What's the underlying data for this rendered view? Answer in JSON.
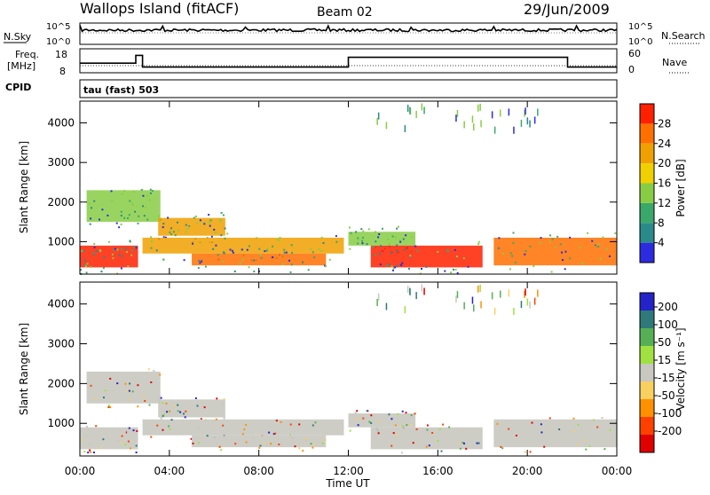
{
  "header": {
    "station": "Wallops Island (fitACF)",
    "beam": "Beam 02",
    "date": "29/Jun/2009"
  },
  "noise_panel": {
    "left_label": "N.Sky",
    "right_label": "N.Search",
    "left_ticks": [
      "10^5",
      "10^0"
    ],
    "right_ticks": [
      "10^5",
      "10^0"
    ]
  },
  "freq_panel": {
    "left_label_1": "Freq.",
    "left_label_2": "[MHz]",
    "left_ticks": [
      "18",
      "8"
    ],
    "right_label": "Nave",
    "right_ticks": [
      "60",
      "0"
    ]
  },
  "cpid": {
    "label": "CPID",
    "value": "tau (fast) 503"
  },
  "power_panel": {
    "ylabel": "Slant Range [km]",
    "yticks": [
      "4000",
      "3000",
      "2000",
      "1000"
    ],
    "colorbar_label": "Power [dB]",
    "colorbar_ticks": [
      "28",
      "24",
      "20",
      "16",
      "12",
      "8",
      "4"
    ],
    "colors": [
      "#2b2be0",
      "#2a8a8a",
      "#3aa86a",
      "#88cc44",
      "#f0d000",
      "#f0a000",
      "#ff7000",
      "#ff2000"
    ]
  },
  "velocity_panel": {
    "ylabel": "Slant Range [km]",
    "yticks": [
      "4000",
      "3000",
      "2000",
      "1000"
    ],
    "colorbar_label": "Velocity [m s⁻¹]",
    "colorbar_ticks": [
      "200",
      "100",
      "50",
      "15",
      "-15",
      "-50",
      "-100",
      "-200"
    ],
    "colors": [
      "#2323c8",
      "#2e7a7a",
      "#55b055",
      "#a0e040",
      "#c8c8c0",
      "#f8d060",
      "#ff9000",
      "#ff4000",
      "#e00000"
    ]
  },
  "xaxis": {
    "label": "Time UT",
    "ticks": [
      "00:00",
      "04:00",
      "08:00",
      "12:00",
      "16:00",
      "20:00",
      "00:00"
    ]
  },
  "chart_data": {
    "type": "heatmap",
    "title": "Wallops Island (fitACF) Beam 02 29/Jun/2009",
    "xlabel": "Time UT",
    "ylabel": "Slant Range [km]",
    "x_range_hours": [
      0,
      24
    ],
    "ylim": [
      180,
      4550
    ],
    "frequency_mhz_segments": [
      {
        "start_h": 0.0,
        "end_h": 2.5,
        "value": 12
      },
      {
        "start_h": 2.5,
        "end_h": 2.8,
        "value": 16
      },
      {
        "start_h": 2.8,
        "end_h": 12.0,
        "value": 10
      },
      {
        "start_h": 12.0,
        "end_h": 21.8,
        "value": 15
      },
      {
        "start_h": 21.8,
        "end_h": 24.0,
        "value": 10
      }
    ],
    "power_regions": [
      {
        "t0": 0.0,
        "t1": 2.6,
        "r0": 350,
        "r1": 900,
        "power_db": 28
      },
      {
        "t0": 0.3,
        "t1": 3.6,
        "r0": 1500,
        "r1": 2300,
        "power_db": 14
      },
      {
        "t0": 3.5,
        "t1": 6.5,
        "r0": 1150,
        "r1": 1600,
        "power_db": 20
      },
      {
        "t0": 2.8,
        "t1": 11.8,
        "r0": 700,
        "r1": 1100,
        "power_db": 22
      },
      {
        "t0": 5.0,
        "t1": 11.0,
        "r0": 400,
        "r1": 700,
        "power_db": 26
      },
      {
        "t0": 12.0,
        "t1": 15.0,
        "r0": 900,
        "r1": 1250,
        "power_db": 12
      },
      {
        "t0": 13.0,
        "t1": 18.0,
        "r0": 350,
        "r1": 900,
        "power_db": 28
      },
      {
        "t0": 18.5,
        "t1": 24.0,
        "r0": 400,
        "r1": 1100,
        "power_db": 26
      }
    ]
  }
}
